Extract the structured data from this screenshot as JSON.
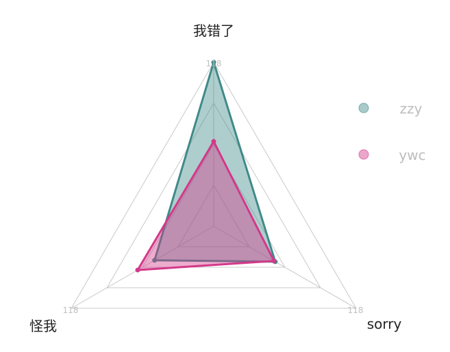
{
  "chart_data": {
    "type": "radar",
    "axes": [
      "我错了",
      "sorry",
      "怪我"
    ],
    "axis_max": 118,
    "axis_max_label": "118",
    "grid_levels": 4,
    "legend_position": "right",
    "series": [
      {
        "name": "zzy",
        "values": [
          118,
          51,
          49
        ],
        "color": "#3f8a88"
      },
      {
        "name": "ywc",
        "values": [
          61,
          50,
          63
        ],
        "color": "#d3398a"
      }
    ]
  }
}
